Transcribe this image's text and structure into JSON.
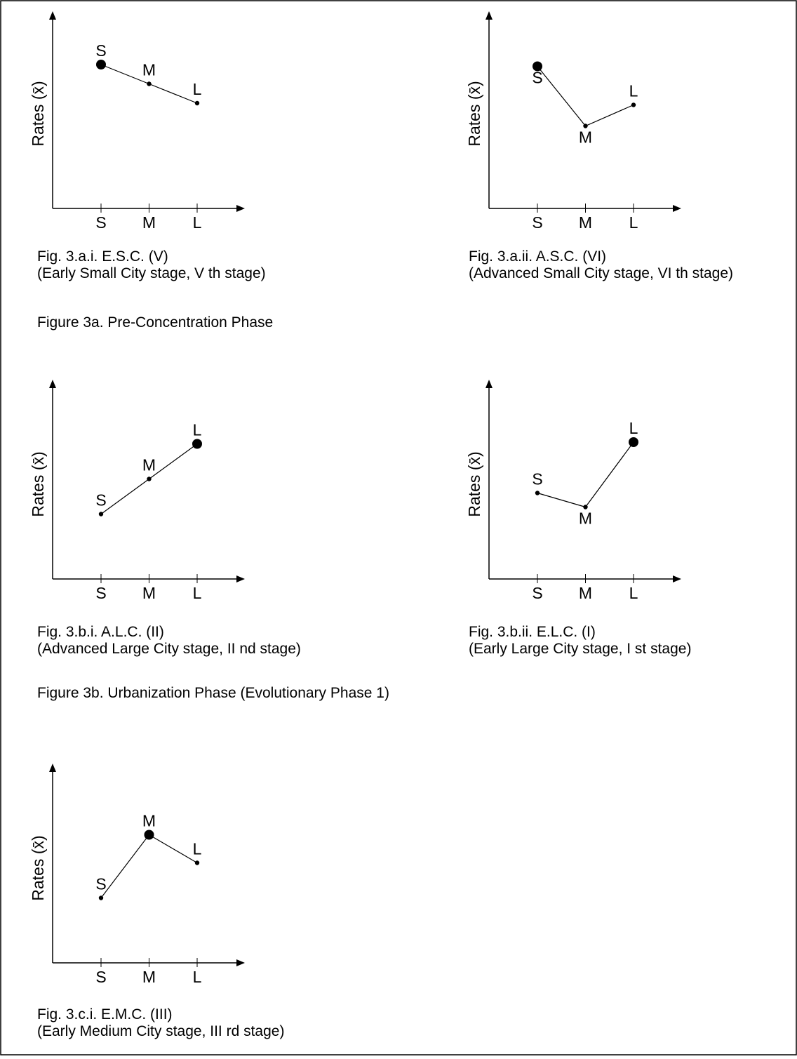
{
  "phases": [
    "Figure 3a. Pre-Concentration Phase",
    "Figure 3b. Urbanization Phase (Evolutionary Phase 1)"
  ],
  "chart_data": [
    {
      "type": "line",
      "ylabel": "Rates (x̄)",
      "categories": [
        "S",
        "M",
        "L"
      ],
      "values": [
        0.82,
        0.71,
        0.6
      ],
      "point_labels": [
        "S",
        "M",
        "L"
      ],
      "emphasized": "S",
      "ylim": [
        0,
        1
      ],
      "caption": [
        "Fig. 3.a.i. E.S.C. (V)",
        "(Early Small City stage, V th stage)"
      ]
    },
    {
      "type": "line",
      "ylabel": "Rates (x̄)",
      "categories": [
        "S",
        "M",
        "L"
      ],
      "values": [
        0.81,
        0.47,
        0.59
      ],
      "point_labels": [
        "S",
        "M",
        "L"
      ],
      "emphasized": "S",
      "ylim": [
        0,
        1
      ],
      "caption": [
        "Fig. 3.a.ii. A.S.C. (VI)",
        "(Advanced Small City stage, VI th stage)"
      ]
    },
    {
      "type": "line",
      "ylabel": "Rates (x̄)",
      "categories": [
        "S",
        "M",
        "L"
      ],
      "values": [
        0.37,
        0.57,
        0.77
      ],
      "point_labels": [
        "S",
        "M",
        "L"
      ],
      "emphasized": "L",
      "ylim": [
        0,
        1
      ],
      "caption": [
        "Fig. 3.b.i. A.L.C. (II)",
        "(Advanced Large City stage, II nd stage)"
      ]
    },
    {
      "type": "line",
      "ylabel": "Rates (x̄)",
      "categories": [
        "S",
        "M",
        "L"
      ],
      "values": [
        0.49,
        0.41,
        0.78
      ],
      "point_labels": [
        "S",
        "M",
        "L"
      ],
      "emphasized": "L",
      "ylim": [
        0,
        1
      ],
      "caption": [
        "Fig. 3.b.ii. E.L.C. (I)",
        "(Early Large City stage, I st stage)"
      ]
    },
    {
      "type": "line",
      "ylabel": "Rates (x̄)",
      "categories": [
        "S",
        "M",
        "L"
      ],
      "values": [
        0.37,
        0.73,
        0.57
      ],
      "point_labels": [
        "S",
        "M",
        "L"
      ],
      "emphasized": "M",
      "ylim": [
        0,
        1
      ],
      "caption": [
        "Fig. 3.c.i. E.M.C. (III)",
        "(Early Medium City stage, III rd stage)"
      ]
    }
  ]
}
